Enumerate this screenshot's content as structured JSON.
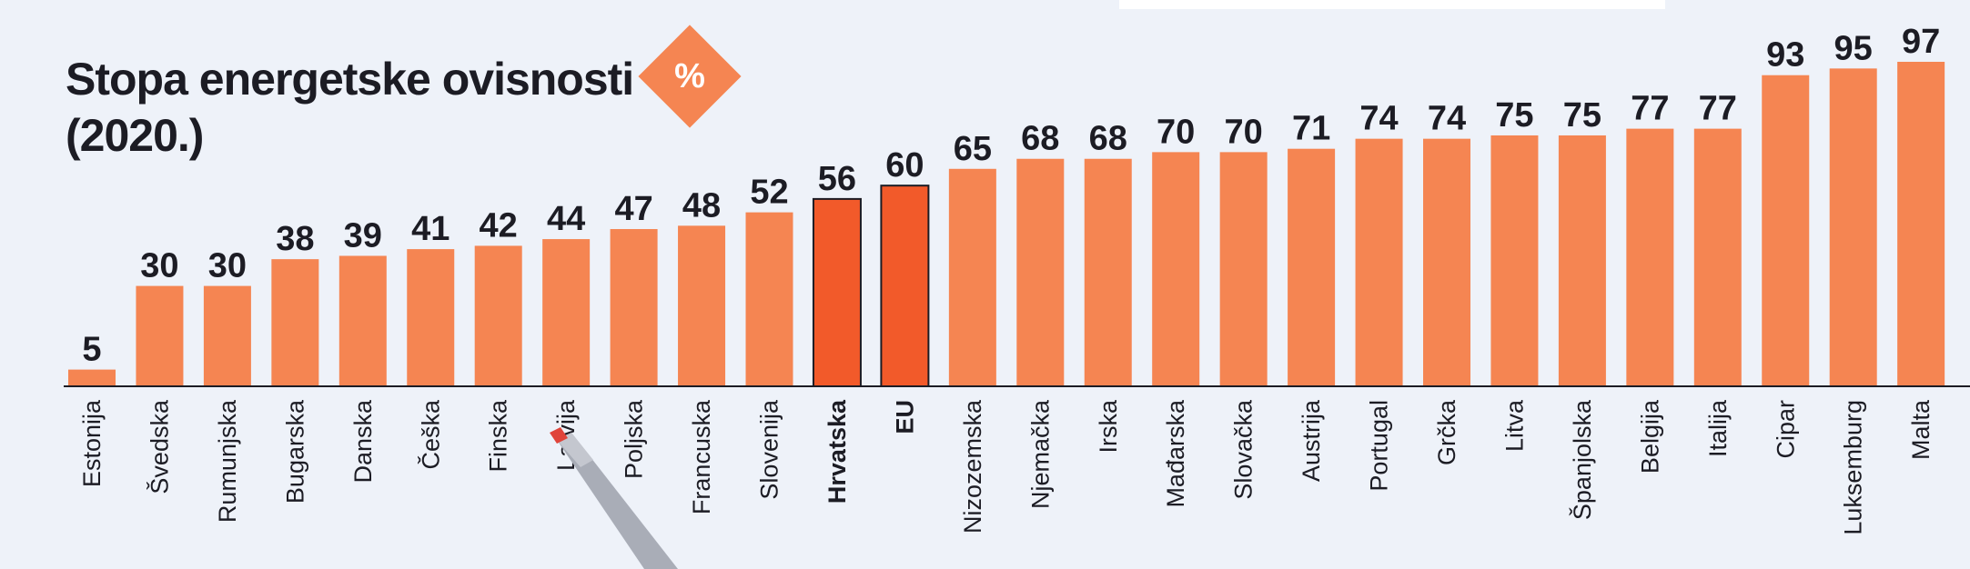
{
  "title_line1": "Stopa energetske ovisnosti",
  "title_line2": "(2020.)",
  "badge": "%",
  "colors": {
    "bar": "#f58552",
    "highlight": "#f25a2a",
    "text": "#1c1c24",
    "background": "#eef2f9"
  },
  "chart_data": {
    "type": "bar",
    "title": "Stopa energetske ovisnosti (2020.)",
    "unit": "%",
    "categories": [
      "Estonija",
      "Švedska",
      "Rumunjska",
      "Bugarska",
      "Danska",
      "Češka",
      "Finska",
      "Latvija",
      "Poljska",
      "Francuska",
      "Slovenija",
      "Hrvatska",
      "EU",
      "Nizozemska",
      "Njemačka",
      "Irska",
      "Mađarska",
      "Slovačka",
      "Austrija",
      "Portugal",
      "Grčka",
      "Litva",
      "Španjolska",
      "Belgija",
      "Italija",
      "Cipar",
      "Luksemburg",
      "Malta"
    ],
    "values": [
      5,
      30,
      30,
      38,
      39,
      41,
      42,
      44,
      47,
      48,
      52,
      56,
      60,
      65,
      68,
      68,
      70,
      70,
      71,
      74,
      74,
      75,
      75,
      77,
      77,
      93,
      95,
      97
    ],
    "highlighted": [
      "Hrvatska",
      "EU"
    ],
    "ylim": [
      0,
      97
    ],
    "grid": false,
    "legend": "none"
  }
}
